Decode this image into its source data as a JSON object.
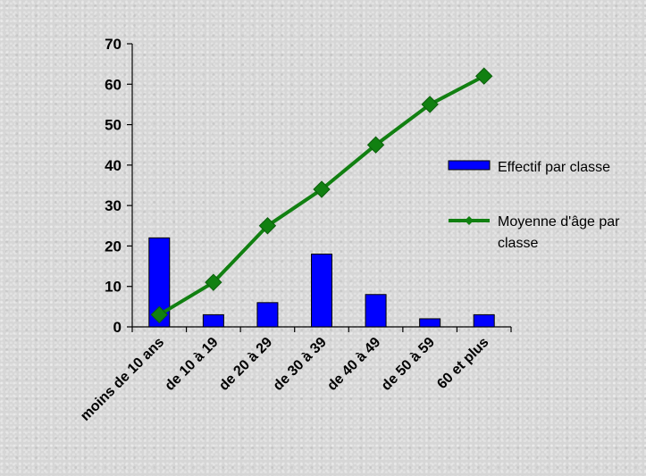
{
  "chart_data": {
    "type": "bar",
    "title": "",
    "xlabel": "",
    "ylabel": "",
    "categories": [
      "moins de 10 ans",
      "de 10 à 19",
      "de 20 à 29",
      "de 30 à 39",
      "de 40 à 49",
      "de 50 à 59",
      "60 et plus"
    ],
    "ylim": [
      0,
      70
    ],
    "yticks": [
      0,
      10,
      20,
      30,
      40,
      50,
      60,
      70
    ],
    "grid": false,
    "legend_position": "right",
    "series": [
      {
        "name": "Effectif par classe",
        "type": "bar",
        "color": "#0000ff",
        "values": [
          22,
          3,
          6,
          18,
          8,
          2,
          3
        ]
      },
      {
        "name": "Moyenne d'âge par classe",
        "type": "line",
        "color": "#118011",
        "marker": "diamond",
        "values": [
          3,
          11,
          25,
          34,
          45,
          55,
          62
        ]
      }
    ]
  }
}
